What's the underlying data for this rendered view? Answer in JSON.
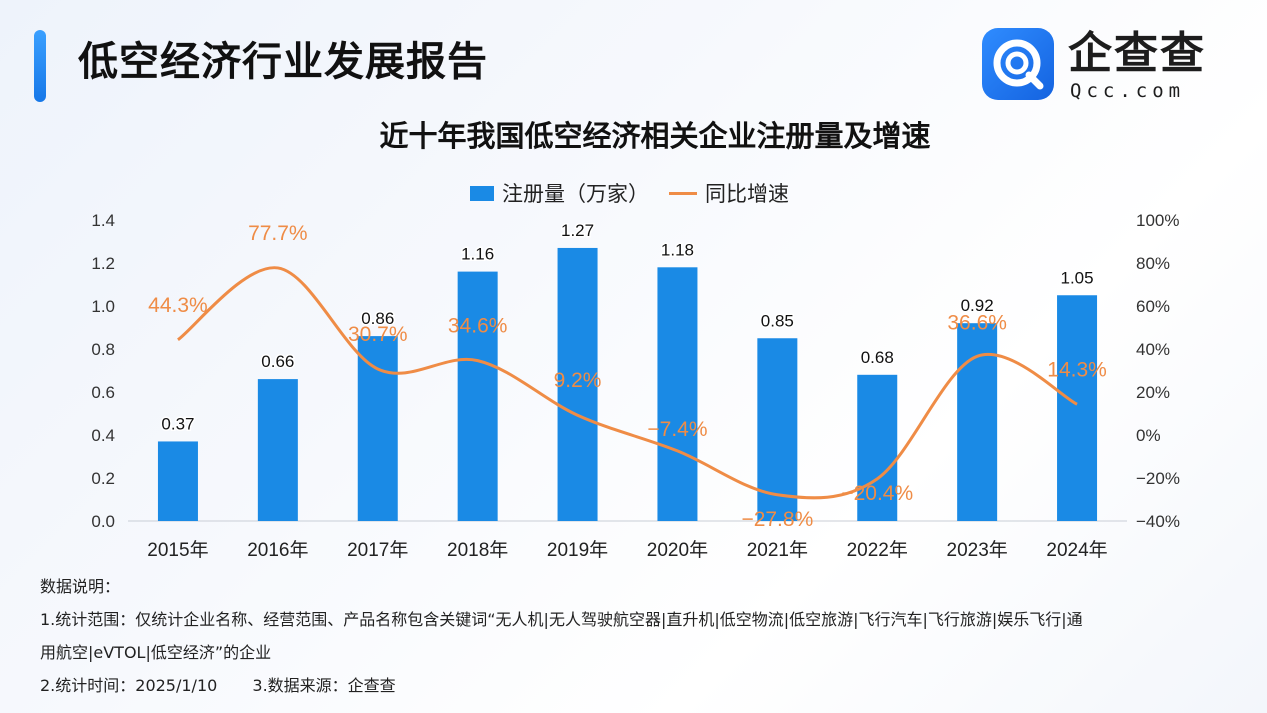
{
  "header": {
    "title": "低空经济行业发展报告",
    "logo_name": "企查查",
    "logo_domain": "Qcc.com"
  },
  "colors": {
    "bar": "#1a8ae5",
    "line": "#ef8c46",
    "accent": "#1677e8"
  },
  "chart_data": {
    "type": "bar",
    "title": "近十年我国低空经济相关企业注册量及增速",
    "categories": [
      "2015年",
      "2016年",
      "2017年",
      "2018年",
      "2019年",
      "2020年",
      "2021年",
      "2022年",
      "2023年",
      "2024年"
    ],
    "series": [
      {
        "name": "注册量（万家）",
        "type": "bar",
        "axis": "left",
        "values": [
          0.37,
          0.66,
          0.86,
          1.16,
          1.27,
          1.18,
          0.85,
          0.68,
          0.92,
          1.05
        ],
        "labels": [
          "0.37",
          "0.66",
          "0.86",
          "1.16",
          "1.27",
          "1.18",
          "0.85",
          "0.68",
          "0.92",
          "1.05"
        ]
      },
      {
        "name": "同比增速",
        "type": "line",
        "axis": "right",
        "values": [
          44.3,
          77.7,
          30.7,
          34.6,
          9.2,
          -7.4,
          -27.8,
          -20.4,
          36.6,
          14.3
        ],
        "labels": [
          "44.3%",
          "77.7%",
          "30.7%",
          "34.6%",
          "9.2%",
          "−7.4%",
          "−27.8%",
          "−20.4%",
          "36.6%",
          "14.3%"
        ]
      }
    ],
    "ylim_left": [
      0,
      1.4
    ],
    "yticks_left": [
      "0.0",
      "0.2",
      "0.4",
      "0.6",
      "0.8",
      "1.0",
      "1.2",
      "1.4"
    ],
    "ylim_right": [
      -40,
      100
    ],
    "yticks_right": [
      "−40%",
      "−20%",
      "0%",
      "20%",
      "40%",
      "60%",
      "80%",
      "100%"
    ],
    "legend_position": "top-center",
    "grid": false
  },
  "notes": {
    "heading": "数据说明：",
    "scope_line1": "1.统计范围：仅统计企业名称、经营范围、产品名称包含关键词“无人机|无人驾驶航空器|直升机|低空物流|低空旅游|飞行汽车|飞行旅游|娱乐飞行|通",
    "scope_line2": "用航空|eVTOL|低空经济”的企业",
    "time": "2.统计时间：2025/1/10",
    "source": "3.数据来源：企查查"
  }
}
